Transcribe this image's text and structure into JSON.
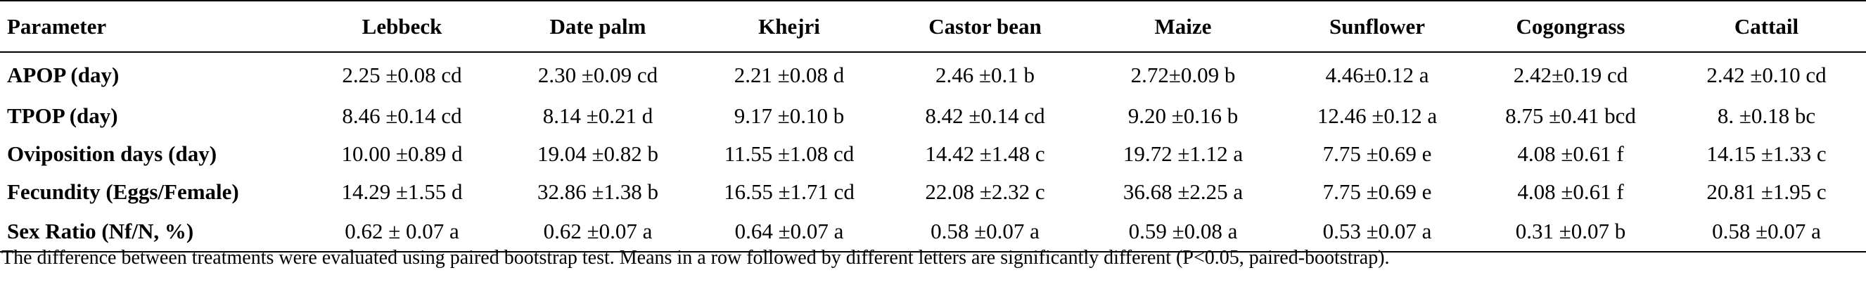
{
  "table": {
    "header": {
      "parameter": "Parameter",
      "columns": [
        "Lebbeck",
        "Date palm",
        "Khejri",
        "Castor bean",
        "Maize",
        "Sunflower",
        "Cogongrass",
        "Cattail"
      ]
    },
    "rows": [
      {
        "label": "APOP (day)",
        "cells": [
          "2.25 ±0.08 cd",
          "2.30 ±0.09 cd",
          "2.21 ±0.08 d",
          "2.46 ±0.1 b",
          "2.72±0.09 b",
          "4.46±0.12 a",
          "2.42±0.19 cd",
          "2.42 ±0.10 cd"
        ]
      },
      {
        "label": "TPOP (day)",
        "cells": [
          "8.46 ±0.14 cd",
          "8.14 ±0.21 d",
          "9.17 ±0.10 b",
          "8.42 ±0.14 cd",
          "9.20 ±0.16 b",
          "12.46 ±0.12 a",
          "8.75 ±0.41 bcd",
          "8.  ±0.18 bc"
        ]
      },
      {
        "label": "Oviposition days (day)",
        "cells": [
          "10.00 ±0.89 d",
          "19.04 ±0.82 b",
          "11.55 ±1.08 cd",
          "14.42 ±1.48 c",
          "19.72 ±1.12 a",
          "7.75 ±0.69 e",
          "4.08 ±0.61 f",
          "14.15 ±1.33 c"
        ]
      },
      {
        "label": "Fecundity (Eggs/Female)",
        "cells": [
          "14.29 ±1.55 d",
          "32.86 ±1.38 b",
          "16.55 ±1.71 cd",
          "22.08 ±2.32 c",
          "36.68 ±2.25 a",
          "7.75 ±0.69 e",
          "4.08 ±0.61 f",
          "20.81 ±1.95 c"
        ]
      },
      {
        "label": "Sex Ratio (Nf/N, %)",
        "cells": [
          "0.62 ± 0.07 a",
          "0.62 ±0.07 a",
          "0.64 ±0.07 a",
          "0.58 ±0.07 a",
          "0.59 ±0.08 a",
          "0.53 ±0.07 a",
          "0.31 ±0.07 b",
          "0.58 ±0.07 a"
        ]
      }
    ]
  },
  "footnote": "The difference between treatments were evaluated using paired bootstrap test. Means in a row followed by different letters are significantly different (P<0.05, paired-bootstrap)."
}
